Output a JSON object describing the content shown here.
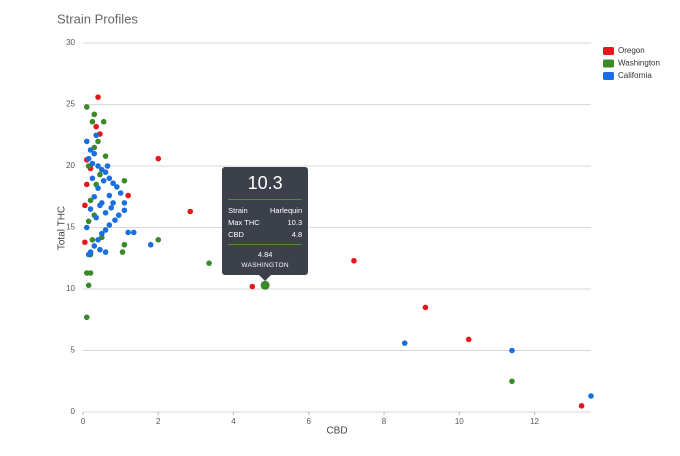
{
  "chart_data": {
    "type": "scatter",
    "title": "Strain Profiles",
    "x_label": "CBD",
    "y_label": "Total THC",
    "xlim": [
      0,
      13.5
    ],
    "xticks": [
      0,
      2,
      4,
      6,
      8,
      10,
      12
    ],
    "ylim": [
      0,
      30
    ],
    "yticks": [
      0,
      5,
      10,
      15,
      20,
      25,
      30
    ],
    "grid": true,
    "legend": "top-right",
    "series": [
      {
        "name": "Oregon",
        "color": "#e8161b",
        "x": [
          0.4,
          0.35,
          0.45,
          2.0,
          2.85,
          4.5,
          7.2,
          9.1,
          10.25,
          13.25,
          1.2,
          0.1,
          0.05,
          0.05,
          0.2,
          0.1
        ],
        "values": [
          25.6,
          23.2,
          22.6,
          20.6,
          16.3,
          10.2,
          12.3,
          8.5,
          5.9,
          0.5,
          17.6,
          20.5,
          16.8,
          13.8,
          19.8,
          18.5
        ]
      },
      {
        "name": "Washington",
        "color": "#3a8a2a",
        "x": [
          0.1,
          0.3,
          0.55,
          0.25,
          0.4,
          0.6,
          0.15,
          1.1,
          1.1,
          1.05,
          2.0,
          3.35,
          4.84,
          0.2,
          0.1,
          0.15,
          0.1,
          11.4,
          0.25,
          0.5,
          0.2,
          0.35,
          0.3,
          0.2,
          0.45,
          0.15,
          0.3
        ],
        "values": [
          24.8,
          24.2,
          23.6,
          23.6,
          22.0,
          20.8,
          20.0,
          18.8,
          13.6,
          13.0,
          14.0,
          12.1,
          10.3,
          11.3,
          11.3,
          10.3,
          7.7,
          2.5,
          14.0,
          14.2,
          12.8,
          18.5,
          16.0,
          17.2,
          19.3,
          15.5,
          21.5
        ]
      },
      {
        "name": "California",
        "color": "#1a6fe0",
        "x": [
          0.1,
          0.2,
          0.3,
          0.35,
          0.15,
          0.25,
          0.4,
          0.5,
          0.6,
          0.7,
          0.8,
          0.9,
          1.0,
          1.1,
          1.1,
          0.95,
          0.85,
          0.7,
          0.6,
          0.5,
          0.4,
          0.3,
          0.2,
          0.15,
          0.1,
          0.2,
          0.3,
          0.4,
          0.5,
          0.6,
          0.7,
          0.8,
          0.25,
          0.35,
          0.45,
          0.55,
          0.65,
          0.75,
          0.45,
          0.6,
          1.2,
          1.35,
          1.8,
          8.55,
          11.4,
          13.5
        ],
        "values": [
          22.0,
          21.3,
          21.0,
          22.5,
          20.6,
          20.2,
          20.0,
          19.7,
          19.5,
          19.0,
          18.6,
          18.3,
          17.8,
          17.0,
          16.4,
          16.0,
          15.6,
          15.2,
          14.8,
          14.5,
          14.0,
          13.5,
          13.0,
          12.8,
          15.0,
          16.5,
          17.5,
          18.2,
          17.0,
          16.2,
          17.6,
          17.0,
          19.0,
          15.8,
          16.8,
          18.8,
          20.0,
          16.6,
          13.2,
          13.0,
          14.6,
          14.6,
          13.6,
          5.6,
          5.0,
          1.3
        ]
      }
    ],
    "selected_point": [
      1,
      12
    ],
    "tooltip": {
      "title": "10.3",
      "rows": [
        [
          "Strain",
          "Harlequin"
        ],
        [
          "Max THC",
          "10.3"
        ],
        [
          "CBD",
          "4.8"
        ]
      ],
      "footer_value": "4.84",
      "footer_label": "WASHINGTON"
    }
  }
}
